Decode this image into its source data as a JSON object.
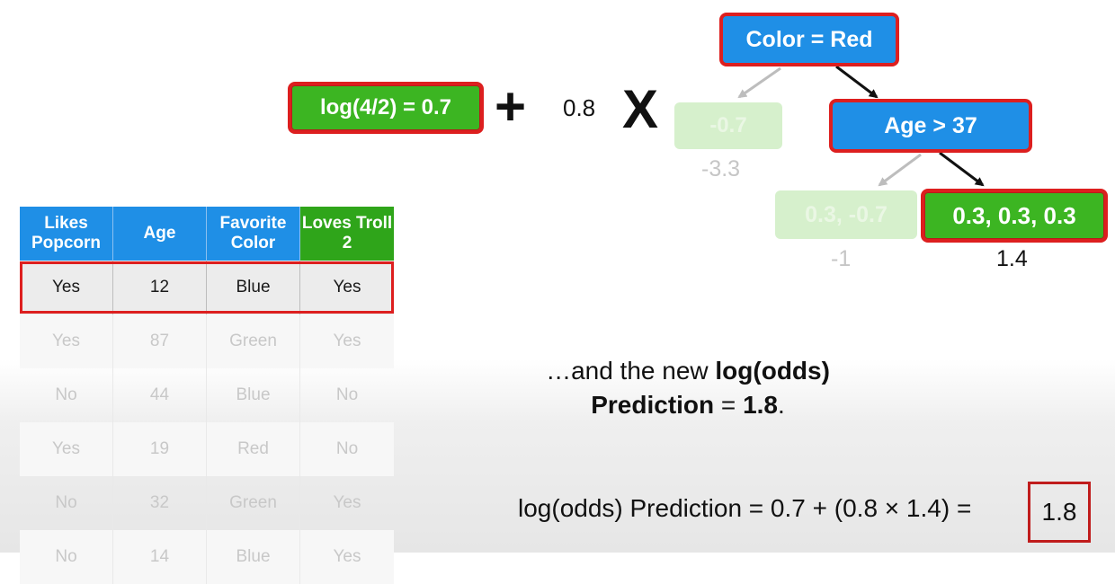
{
  "equation": {
    "initial": "log(4/2) = 0.7",
    "plus": "+",
    "learning_rate": "0.8",
    "times": "X"
  },
  "tree": {
    "root": "Color = Red",
    "left_leaf": "-0.7",
    "left_leaf_output": "-3.3",
    "age_node": "Age > 37",
    "age_left_leaf": "0.3, -0.7",
    "age_left_output": "-1",
    "age_right_leaf": "0.3, 0.3, 0.3",
    "age_right_output": "1.4"
  },
  "table": {
    "headers": [
      "Likes Popcorn",
      "Age",
      "Favorite Color",
      "Loves Troll 2"
    ],
    "rows": [
      [
        "Yes",
        "12",
        "Blue",
        "Yes"
      ],
      [
        "Yes",
        "87",
        "Green",
        "Yes"
      ],
      [
        "No",
        "44",
        "Blue",
        "No"
      ],
      [
        "Yes",
        "19",
        "Red",
        "No"
      ],
      [
        "No",
        "32",
        "Green",
        "Yes"
      ],
      [
        "No",
        "14",
        "Blue",
        "Yes"
      ]
    ]
  },
  "caption": {
    "line1_prefix": "…and the new ",
    "line1_bold": "log(odds)",
    "line2_bold": "Prediction",
    "line2_mid": " = ",
    "line2_value": "1.8",
    "line2_end": "."
  },
  "formula": {
    "text": "log(odds) Prediction = 0.7 + (0.8 × 1.4) =",
    "result": "1.8"
  },
  "colors": {
    "green": "#3cb522",
    "blue": "#1f8fe6",
    "red": "#dd1f1f"
  }
}
